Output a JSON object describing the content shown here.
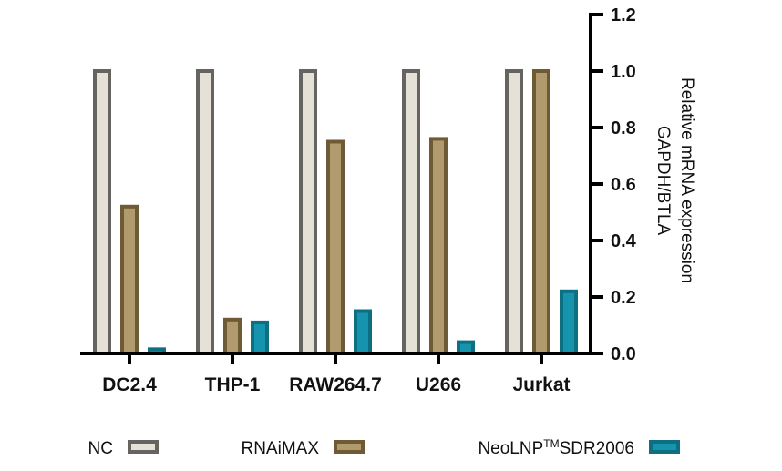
{
  "chart_data": {
    "type": "bar",
    "categories": [
      "Jurkat",
      "U266",
      "RAW264.7",
      "THP-1",
      "DC2.4"
    ],
    "ylabel_line1": "Relative mRNA expression",
    "ylabel_line2": "GAPDH/BTLA",
    "ylim": [
      0,
      1.2
    ],
    "yticks": [
      "0.0",
      "0.2",
      "0.4",
      "0.6",
      "0.8",
      "1.0",
      "1.2"
    ],
    "orientation": "mirrored (y-axis on right, categories right-to-left)",
    "legend_position": "bottom",
    "series": [
      {
        "name": "NC",
        "values": [
          1.0,
          1.0,
          1.0,
          1.0,
          1.0
        ],
        "fill": "#e6e1d6",
        "stroke": "#666461"
      },
      {
        "name": "RNAiMAX",
        "values": [
          1.0,
          0.76,
          0.75,
          0.12,
          0.52
        ],
        "fill": "#b19a6d",
        "stroke": "#6f5a36"
      },
      {
        "name": "NeoLNP",
        "name_sup": "TM",
        "name_suffix": "SDR2006",
        "values": [
          0.22,
          0.04,
          0.15,
          0.11,
          0.015
        ],
        "fill": "#1694ad",
        "stroke": "#0e6f83"
      }
    ]
  }
}
